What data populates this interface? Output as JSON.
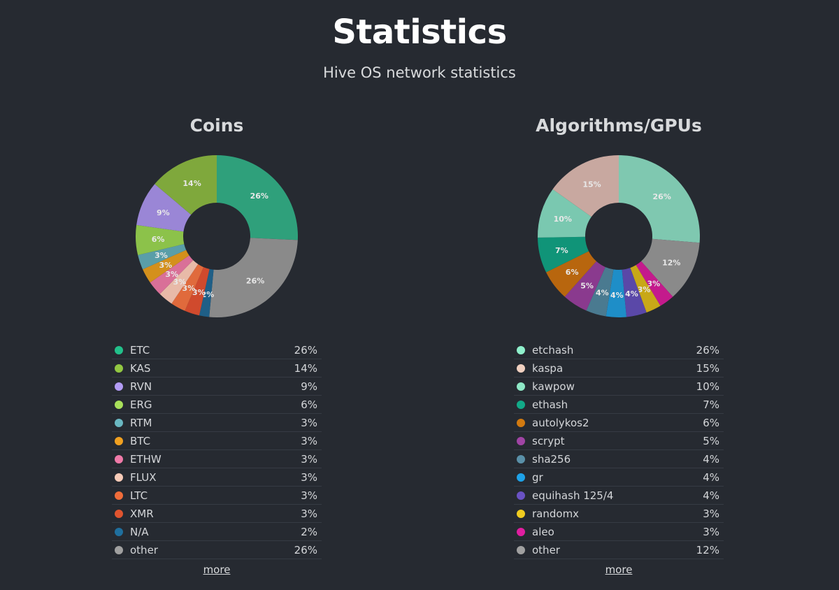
{
  "header": {
    "title": "Statistics",
    "subtitle": "Hive OS network statistics"
  },
  "chart_data": [
    {
      "type": "pie",
      "title": "Coins",
      "more_label": "more",
      "slices": [
        {
          "label": "ETC",
          "value": 26,
          "display": "26%",
          "color": "#2fa07b",
          "swatch": "#22c08a"
        },
        {
          "label": "other",
          "value": 26,
          "display": "26%",
          "color": "#8a8a8a",
          "swatch": "#a0a0a0"
        },
        {
          "label": "N/A",
          "value": 2,
          "display": "2%",
          "color": "#1f5f87",
          "swatch": "#1f6f9e"
        },
        {
          "label": "XMR",
          "value": 3,
          "display": "3%",
          "color": "#d04a2d",
          "swatch": "#e0542f"
        },
        {
          "label": "LTC",
          "value": 3,
          "display": "3%",
          "color": "#e06a3c",
          "swatch": "#ef6c3a"
        },
        {
          "label": "FLUX",
          "value": 3,
          "display": "3%",
          "color": "#e8baa8",
          "swatch": "#f8cbb8"
        },
        {
          "label": "ETHW",
          "value": 3,
          "display": "3%",
          "color": "#d97098",
          "swatch": "#ef7aa8"
        },
        {
          "label": "BTC",
          "value": 3,
          "display": "3%",
          "color": "#d4901c",
          "swatch": "#f0a020"
        },
        {
          "label": "RTM",
          "value": 3,
          "display": "3%",
          "color": "#5a9ea8",
          "swatch": "#6ab8c2"
        },
        {
          "label": "ERG",
          "value": 6,
          "display": "6%",
          "color": "#8cc24a",
          "swatch": "#a8e05a"
        },
        {
          "label": "RVN",
          "value": 9,
          "display": "9%",
          "color": "#9a86d6",
          "swatch": "#b29bf5"
        },
        {
          "label": "KAS",
          "value": 14,
          "display": "14%",
          "color": "#7fa83c",
          "swatch": "#92c742"
        }
      ],
      "legend": [
        {
          "label": "ETC",
          "display": "26%",
          "swatch": "#22c08a"
        },
        {
          "label": "KAS",
          "display": "14%",
          "swatch": "#92c742"
        },
        {
          "label": "RVN",
          "display": "9%",
          "swatch": "#b29bf5"
        },
        {
          "label": "ERG",
          "display": "6%",
          "swatch": "#a8e05a"
        },
        {
          "label": "RTM",
          "display": "3%",
          "swatch": "#6ab8c2"
        },
        {
          "label": "BTC",
          "display": "3%",
          "swatch": "#f0a020"
        },
        {
          "label": "ETHW",
          "display": "3%",
          "swatch": "#ef7aa8"
        },
        {
          "label": "FLUX",
          "display": "3%",
          "swatch": "#f8cbb8"
        },
        {
          "label": "LTC",
          "display": "3%",
          "swatch": "#ef6c3a"
        },
        {
          "label": "XMR",
          "display": "3%",
          "swatch": "#e0542f"
        },
        {
          "label": "N/A",
          "display": "2%",
          "swatch": "#1f6f9e"
        },
        {
          "label": "other",
          "display": "26%",
          "swatch": "#a0a0a0"
        }
      ]
    },
    {
      "type": "pie",
      "title": "Algorithms/GPUs",
      "more_label": "more",
      "slices": [
        {
          "label": "etchash",
          "value": 26,
          "display": "26%",
          "color": "#7fc8b0",
          "swatch": "#8ff0cc"
        },
        {
          "label": "other",
          "value": 12,
          "display": "12%",
          "color": "#8a8a8a",
          "swatch": "#a0a0a0"
        },
        {
          "label": "aleo",
          "value": 3,
          "display": "3%",
          "color": "#c41a8c",
          "swatch": "#e01ea0"
        },
        {
          "label": "randomx",
          "value": 3,
          "display": "3%",
          "color": "#c8a818",
          "swatch": "#f0cc20"
        },
        {
          "label": "equihash 125/4",
          "value": 4,
          "display": "4%",
          "color": "#5a48a8",
          "swatch": "#6a52c4"
        },
        {
          "label": "gr",
          "value": 4,
          "display": "4%",
          "color": "#1e8ec8",
          "swatch": "#1ea2e8"
        },
        {
          "label": "sha256",
          "value": 4,
          "display": "4%",
          "color": "#4a7a90",
          "swatch": "#5a90a8"
        },
        {
          "label": "scrypt",
          "value": 5,
          "display": "5%",
          "color": "#8a3a8e",
          "swatch": "#a044a4"
        },
        {
          "label": "autolykos2",
          "value": 6,
          "display": "6%",
          "color": "#b8660e",
          "swatch": "#d27a10"
        },
        {
          "label": "ethash",
          "value": 7,
          "display": "7%",
          "color": "#109478",
          "swatch": "#12aa88"
        },
        {
          "label": "kawpow",
          "value": 10,
          "display": "10%",
          "color": "#7ac8b0",
          "swatch": "#8ee8c6"
        },
        {
          "label": "kaspa",
          "value": 15,
          "display": "15%",
          "color": "#c8a8a0",
          "swatch": "#f0d0c0"
        }
      ],
      "legend": [
        {
          "label": "etchash",
          "display": "26%",
          "swatch": "#8ff0cc"
        },
        {
          "label": "kaspa",
          "display": "15%",
          "swatch": "#f0d0c0"
        },
        {
          "label": "kawpow",
          "display": "10%",
          "swatch": "#8ee8c6"
        },
        {
          "label": "ethash",
          "display": "7%",
          "swatch": "#12aa88"
        },
        {
          "label": "autolykos2",
          "display": "6%",
          "swatch": "#d27a10"
        },
        {
          "label": "scrypt",
          "display": "5%",
          "swatch": "#a044a4"
        },
        {
          "label": "sha256",
          "display": "4%",
          "swatch": "#5a90a8"
        },
        {
          "label": "gr",
          "display": "4%",
          "swatch": "#1ea2e8"
        },
        {
          "label": "equihash 125/4",
          "display": "4%",
          "swatch": "#6a52c4"
        },
        {
          "label": "randomx",
          "display": "3%",
          "swatch": "#f0cc20"
        },
        {
          "label": "aleo",
          "display": "3%",
          "swatch": "#e01ea0"
        },
        {
          "label": "other",
          "display": "12%",
          "swatch": "#a0a0a0"
        }
      ]
    }
  ]
}
